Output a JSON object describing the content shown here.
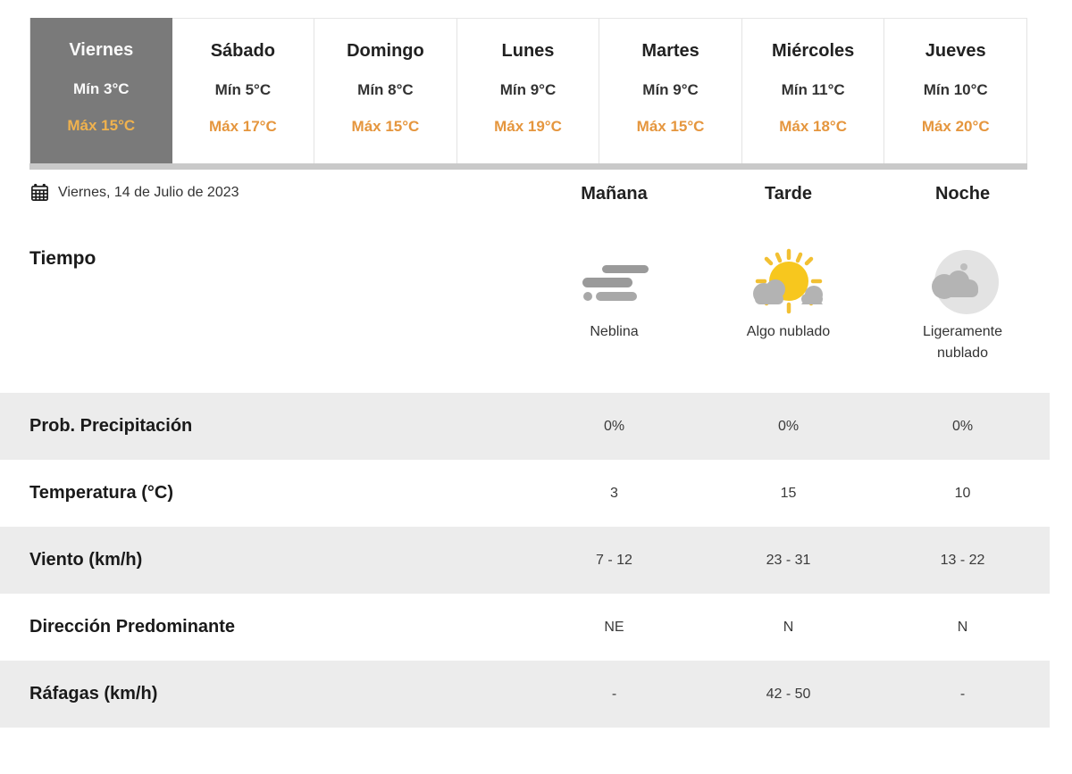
{
  "colors": {
    "accent_orange": "#e5963e",
    "accent_orange_selected": "#f0b24e",
    "selected_tab_bg": "#7a7a7a",
    "shaded_row_bg": "#ececec",
    "sun_yellow": "#f7c71e",
    "cloud_gray": "#b3b3b3"
  },
  "tabs": [
    {
      "day": "Viernes",
      "min": "Mín 3°C",
      "max": "Máx 15°C",
      "selected": true
    },
    {
      "day": "Sábado",
      "min": "Mín 5°C",
      "max": "Máx 17°C",
      "selected": false
    },
    {
      "day": "Domingo",
      "min": "Mín 8°C",
      "max": "Máx 15°C",
      "selected": false
    },
    {
      "day": "Lunes",
      "min": "Mín 9°C",
      "max": "Máx 19°C",
      "selected": false
    },
    {
      "day": "Martes",
      "min": "Mín 9°C",
      "max": "Máx 15°C",
      "selected": false
    },
    {
      "day": "Miércoles",
      "min": "Mín 11°C",
      "max": "Máx 18°C",
      "selected": false
    },
    {
      "day": "Jueves",
      "min": "Mín 10°C",
      "max": "Máx 20°C",
      "selected": false
    }
  ],
  "header": {
    "date": "Viernes, 14 de Julio de 2023",
    "calendar_icon": "calendar-icon",
    "periods": [
      "Mañana",
      "Tarde",
      "Noche"
    ]
  },
  "weather_row": {
    "label": "Tiempo",
    "cells": [
      {
        "icon": "fog-icon",
        "caption": "Neblina"
      },
      {
        "icon": "sun-behind-cloud-icon",
        "caption": "Algo nublado"
      },
      {
        "icon": "moon-cloud-icon",
        "caption": "Ligeramente nublado"
      }
    ]
  },
  "rows": [
    {
      "label": "Prob. Precipitación",
      "values": [
        "0%",
        "0%",
        "0%"
      ],
      "shaded": true
    },
    {
      "label": "Temperatura (°C)",
      "values": [
        "3",
        "15",
        "10"
      ],
      "shaded": false
    },
    {
      "label": "Viento (km/h)",
      "values": [
        "7 - 12",
        "23 - 31",
        "13 - 22"
      ],
      "shaded": true
    },
    {
      "label": "Dirección Predominante",
      "values": [
        "NE",
        "N",
        "N"
      ],
      "shaded": false
    },
    {
      "label": "Ráfagas (km/h)",
      "values": [
        "-",
        "42 - 50",
        "-"
      ],
      "shaded": true
    }
  ]
}
